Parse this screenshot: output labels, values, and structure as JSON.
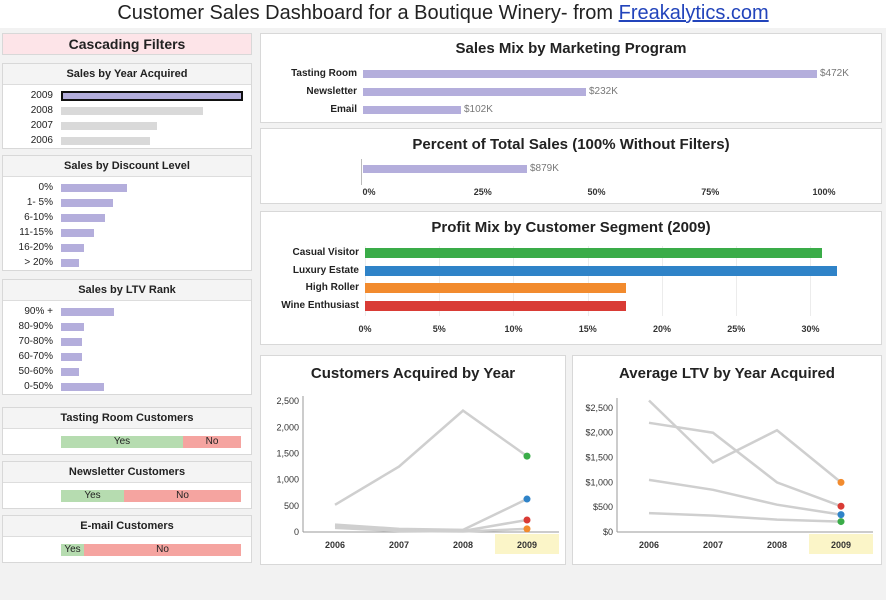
{
  "header": {
    "title": "Customer Sales Dashboard for a Boutique Winery- from",
    "link": "Freakalytics.com"
  },
  "filters": {
    "title": "Cascading Filters",
    "year": {
      "title": "Sales by Year Acquired",
      "items": [
        {
          "label": "2009",
          "value": 1.0,
          "selected": true
        },
        {
          "label": "2008",
          "value": 0.78
        },
        {
          "label": "2007",
          "value": 0.53
        },
        {
          "label": "2006",
          "value": 0.49
        }
      ]
    },
    "discount": {
      "title": "Sales by Discount Level",
      "items": [
        {
          "label": "0%",
          "value": 0.6
        },
        {
          "label": "1- 5%",
          "value": 0.47
        },
        {
          "label": "6-10%",
          "value": 0.4
        },
        {
          "label": "11-15%",
          "value": 0.3
        },
        {
          "label": "16-20%",
          "value": 0.21
        },
        {
          "label": "> 20%",
          "value": 0.16
        }
      ]
    },
    "ltv": {
      "title": "Sales by LTV Rank",
      "items": [
        {
          "label": "90% +",
          "value": 0.48
        },
        {
          "label": "80-90%",
          "value": 0.21
        },
        {
          "label": "70-80%",
          "value": 0.19
        },
        {
          "label": "60-70%",
          "value": 0.19
        },
        {
          "label": "50-60%",
          "value": 0.16
        },
        {
          "label": "0-50%",
          "value": 0.39
        }
      ]
    },
    "tasting": {
      "title": "Tasting Room Customers",
      "yes": "Yes",
      "no": "No",
      "yes_share": 0.68
    },
    "newsletter": {
      "title": "Newsletter Customers",
      "yes": "Yes",
      "no": "No",
      "yes_share": 0.35
    },
    "email": {
      "title": "E-mail Customers",
      "yes": "Yes",
      "no": "No",
      "yes_share": 0.13
    }
  },
  "chart_data": [
    {
      "type": "bar",
      "title": "Sales Mix by Marketing Program",
      "categories": [
        "Tasting Room",
        "Newsletter",
        "Email"
      ],
      "values": [
        472,
        232,
        102
      ],
      "value_labels": [
        "$472K",
        "$232K",
        "$102K"
      ],
      "xlim": [
        0,
        472
      ]
    },
    {
      "type": "bar",
      "title": "Percent of Total Sales (100% Without Filters)",
      "categories": [
        ""
      ],
      "values": [
        36
      ],
      "value_labels": [
        "$879K"
      ],
      "xticks": [
        "0%",
        "25%",
        "50%",
        "75%",
        "100%"
      ],
      "xlim": [
        0,
        100
      ]
    },
    {
      "type": "bar",
      "title": "Profit Mix by Customer Segment (2009)",
      "categories": [
        "Casual Visitor",
        "Luxury Estate",
        "High Roller",
        "Wine Enthusiast"
      ],
      "values": [
        30.8,
        31.8,
        17.6,
        17.6
      ],
      "colors": [
        "#3aac48",
        "#2f83c8",
        "#f28b2e",
        "#d93b35"
      ],
      "xticks": [
        "0%",
        "5%",
        "10%",
        "15%",
        "20%",
        "25%",
        "30%"
      ],
      "xlim": [
        0,
        33
      ]
    },
    {
      "type": "line",
      "title": "Customers Acquired by Year",
      "x": [
        "2006",
        "2007",
        "2008",
        "2009"
      ],
      "yticks": [
        "2,500",
        "2,000",
        "1,500",
        "1,000",
        "500",
        "0"
      ],
      "ylim": [
        0,
        2600
      ],
      "series": [
        {
          "name": "Casual Visitor",
          "values": [
            520,
            1250,
            2320,
            1450
          ],
          "color": "#3aac48"
        },
        {
          "name": "Luxury Estate",
          "values": [
            140,
            60,
            40,
            630
          ],
          "color": "#2f83c8"
        },
        {
          "name": "Wine Enthusiast",
          "values": [
            120,
            30,
            20,
            230
          ],
          "color": "#d93b35"
        },
        {
          "name": "High Roller",
          "values": [
            80,
            20,
            10,
            60
          ],
          "color": "#f28b2e"
        }
      ],
      "highlight": "2009"
    },
    {
      "type": "line",
      "title": "Average LTV by Year Acquired",
      "x": [
        "2006",
        "2007",
        "2008",
        "2009"
      ],
      "yticks": [
        "$2,500",
        "$2,000",
        "$1,500",
        "$1,000",
        "$500",
        "$0"
      ],
      "ylim": [
        0,
        2700
      ],
      "series": [
        {
          "name": "High Roller",
          "values": [
            2650,
            1400,
            2050,
            1000
          ],
          "color": "#f28b2e"
        },
        {
          "name": "Wine Enthusiast",
          "values": [
            2200,
            2000,
            1000,
            520
          ],
          "color": "#d93b35"
        },
        {
          "name": "Luxury Estate",
          "values": [
            1050,
            850,
            550,
            350
          ],
          "color": "#2f83c8"
        },
        {
          "name": "Casual Visitor",
          "values": [
            380,
            330,
            250,
            210
          ],
          "color": "#3aac48"
        }
      ],
      "highlight": "2009"
    }
  ]
}
